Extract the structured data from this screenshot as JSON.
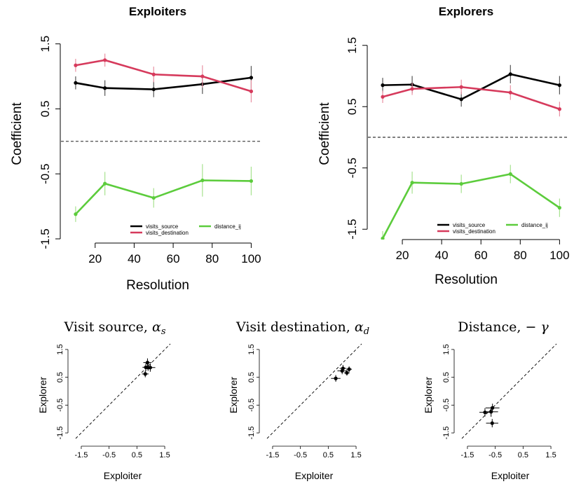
{
  "chart_data": [
    {
      "type": "line",
      "title": "Exploiters",
      "xlabel": "Resolution",
      "ylabel": "Coefficient",
      "x": [
        10,
        25,
        50,
        75,
        100
      ],
      "xticks": [
        20,
        40,
        60,
        80,
        100
      ],
      "yticks": [
        -1.5,
        -0.5,
        0.5,
        1.5
      ],
      "xlim": [
        5,
        102
      ],
      "ylim": [
        -1.5,
        1.55
      ],
      "zero_line": 0,
      "legend_position": "bottom",
      "series": [
        {
          "name": "visits_source",
          "color": "#000000",
          "values": [
            0.9,
            0.82,
            0.8,
            0.88,
            0.98
          ],
          "err": [
            0.1,
            0.12,
            0.12,
            0.15,
            0.18
          ]
        },
        {
          "name": "visits_destination",
          "color": "#d63a5c",
          "values": [
            1.17,
            1.25,
            1.03,
            1.0,
            0.77
          ],
          "err": [
            0.1,
            0.1,
            0.12,
            0.17,
            0.17
          ]
        },
        {
          "name": "distance_ij",
          "color": "#5ccc3c",
          "values": [
            -1.12,
            -0.65,
            -0.87,
            -0.6,
            -0.61
          ],
          "err": [
            0.12,
            0.18,
            0.15,
            0.25,
            0.22
          ]
        }
      ]
    },
    {
      "type": "line",
      "title": "Explorers",
      "xlabel": "Resolution",
      "ylabel": "Coefficient",
      "x": [
        10,
        25,
        50,
        75,
        100
      ],
      "xticks": [
        20,
        40,
        60,
        80,
        100
      ],
      "yticks": [
        -1.5,
        -0.5,
        0.5,
        1.5
      ],
      "xlim": [
        5,
        102
      ],
      "ylim": [
        -1.6,
        1.6
      ],
      "zero_line": 0,
      "legend_position": "bottom",
      "series": [
        {
          "name": "visits_source",
          "color": "#000000",
          "values": [
            0.85,
            0.86,
            0.62,
            1.03,
            0.85
          ],
          "err": [
            0.12,
            0.14,
            0.12,
            0.15,
            0.15
          ]
        },
        {
          "name": "visits_destination",
          "color": "#d63a5c",
          "values": [
            0.66,
            0.79,
            0.82,
            0.73,
            0.46
          ],
          "err": [
            0.1,
            0.1,
            0.12,
            0.12,
            0.12
          ]
        },
        {
          "name": "distance_ij",
          "color": "#5ccc3c",
          "values": [
            -1.65,
            -0.74,
            -0.76,
            -0.6,
            -1.15
          ],
          "err": [
            0.12,
            0.18,
            0.15,
            0.15,
            0.15
          ]
        }
      ]
    },
    {
      "type": "scatter",
      "title": "Visit source, ",
      "title_symbol": "α",
      "title_sub": "s",
      "xlabel": "Exploiter",
      "ylabel": "Explorer",
      "ticks": [
        -1.5,
        -0.5,
        0.5,
        1.5
      ],
      "xlim": [
        -1.7,
        1.7
      ],
      "ylim": [
        -1.7,
        1.7
      ],
      "diagonal": true,
      "points": [
        {
          "x": 0.9,
          "y": 0.85,
          "xerr": 0.1,
          "yerr": 0.12
        },
        {
          "x": 0.82,
          "y": 0.86,
          "xerr": 0.12,
          "yerr": 0.14
        },
        {
          "x": 0.8,
          "y": 0.62,
          "xerr": 0.12,
          "yerr": 0.12
        },
        {
          "x": 0.88,
          "y": 1.03,
          "xerr": 0.15,
          "yerr": 0.15
        },
        {
          "x": 0.98,
          "y": 0.85,
          "xerr": 0.18,
          "yerr": 0.15
        }
      ]
    },
    {
      "type": "scatter",
      "title": "Visit destination, ",
      "title_symbol": "α",
      "title_sub": "d",
      "xlabel": "Exploiter",
      "ylabel": "Explorer",
      "ticks": [
        -1.5,
        -0.5,
        0.5,
        1.5
      ],
      "xlim": [
        -1.7,
        1.7
      ],
      "ylim": [
        -1.7,
        1.7
      ],
      "diagonal": true,
      "points": [
        {
          "x": 1.17,
          "y": 0.66,
          "xerr": 0.1,
          "yerr": 0.1
        },
        {
          "x": 1.25,
          "y": 0.79,
          "xerr": 0.1,
          "yerr": 0.1
        },
        {
          "x": 1.03,
          "y": 0.82,
          "xerr": 0.12,
          "yerr": 0.12
        },
        {
          "x": 1.0,
          "y": 0.73,
          "xerr": 0.17,
          "yerr": 0.12
        },
        {
          "x": 0.77,
          "y": 0.46,
          "xerr": 0.17,
          "yerr": 0.12
        }
      ]
    },
    {
      "type": "scatter",
      "title": "Distance, ",
      "title_symbol": "− γ",
      "title_sub": "",
      "xlabel": "Exploiter",
      "ylabel": "Explorer",
      "ticks": [
        -1.5,
        -0.5,
        0.5,
        1.5
      ],
      "xlim": [
        -1.7,
        1.7
      ],
      "ylim": [
        -1.7,
        1.7
      ],
      "diagonal": true,
      "points": [
        {
          "x": -0.87,
          "y": -0.76,
          "xerr": 0.2,
          "yerr": 0.15
        },
        {
          "x": -0.65,
          "y": -0.74,
          "xerr": 0.25,
          "yerr": 0.18
        },
        {
          "x": -0.6,
          "y": -0.6,
          "xerr": 0.25,
          "yerr": 0.15
        },
        {
          "x": -0.61,
          "y": -1.15,
          "xerr": 0.22,
          "yerr": 0.15
        }
      ]
    }
  ]
}
